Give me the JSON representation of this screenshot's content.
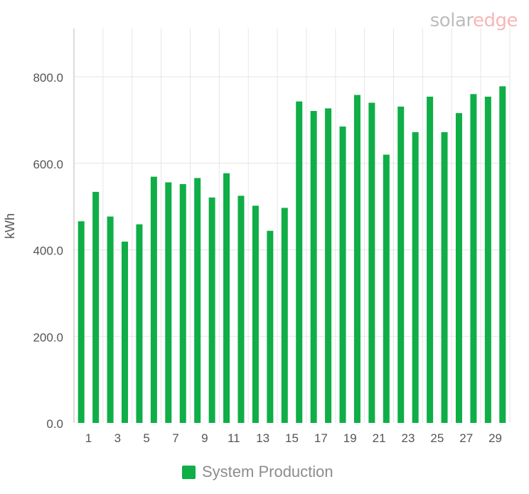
{
  "brand": {
    "part1": "solar",
    "part2": "edge"
  },
  "colors": {
    "bar": "#0fae47",
    "grid": "#e6e6e6",
    "axis": "#cfcfcf",
    "text": "#555555"
  },
  "chart_data": {
    "type": "bar",
    "ylabel": "kWh",
    "xlabel": "",
    "ylim": [
      0,
      900
    ],
    "yticks": [
      0,
      200,
      400,
      600,
      800
    ],
    "ytick_labels": [
      "0.0",
      "200.0",
      "400.0",
      "600.0",
      "800.0"
    ],
    "categories": [
      "1",
      "2",
      "3",
      "4",
      "5",
      "6",
      "7",
      "8",
      "9",
      "10",
      "11",
      "12",
      "13",
      "14",
      "15",
      "16",
      "17",
      "18",
      "19",
      "20",
      "21",
      "22",
      "23",
      "24",
      "25",
      "26",
      "27",
      "28",
      "29",
      "30"
    ],
    "xtick_labels": [
      "1",
      "3",
      "5",
      "7",
      "9",
      "11",
      "13",
      "15",
      "17",
      "19",
      "21",
      "23",
      "25",
      "27",
      "29"
    ],
    "legend": "bottom",
    "grid": true,
    "series": [
      {
        "name": "System Production",
        "values": [
          466,
          534,
          477,
          419,
          459,
          569,
          556,
          552,
          566,
          521,
          577,
          525,
          502,
          444,
          497,
          743,
          721,
          727,
          685,
          758,
          740,
          620,
          731,
          672,
          754,
          672,
          716,
          760,
          754,
          778
        ]
      }
    ]
  }
}
